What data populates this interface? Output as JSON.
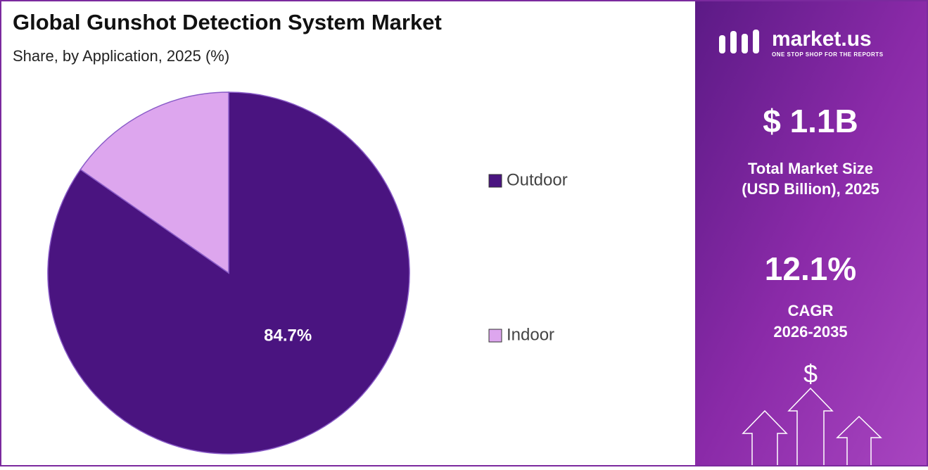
{
  "chart_data": {
    "type": "pie",
    "title": "Global Gunshot Detection System Market",
    "subtitle": "Share, by Application, 2025 (%)",
    "categories": [
      "Outdoor",
      "Indoor"
    ],
    "values": [
      84.7,
      15.3
    ],
    "value_labels": [
      "84.7%",
      null
    ],
    "colors": [
      "#4a1480",
      "#dda6ee"
    ],
    "legend": "right"
  },
  "side_panel": {
    "logo": "market.us",
    "tagline": "ONE STOP SHOP FOR THE REPORTS",
    "market_size": "$ 1.1B",
    "market_size_label": [
      "Total Market Size",
      "(USD Billion), 2025"
    ],
    "cagr": "12.1%",
    "cagr_label": [
      "CAGR",
      "2026-2035"
    ],
    "symbol": "$"
  }
}
